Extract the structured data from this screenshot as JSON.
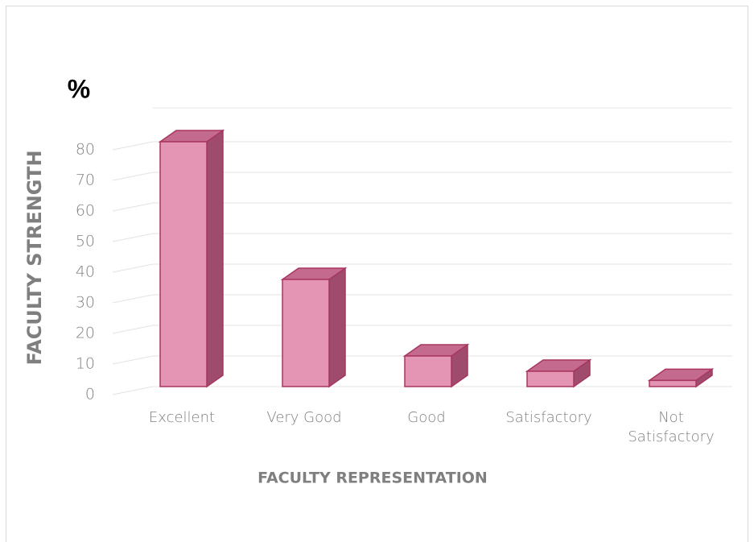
{
  "chart_data": {
    "type": "bar3d",
    "unit_label": "%",
    "y_label": "FACULTY STRENGTH",
    "x_label": "FACULTY REPRESENTATION",
    "categories": [
      "Excellent",
      "Very Good",
      "Good",
      "Satisfactory",
      "Not Satisfactory"
    ],
    "values": [
      80,
      35,
      10,
      5,
      2
    ],
    "color": "#e495b4",
    "ylim": [
      0,
      90
    ],
    "yticks": [
      0,
      10,
      20,
      30,
      40,
      50,
      60,
      70,
      80
    ],
    "grid": true
  }
}
